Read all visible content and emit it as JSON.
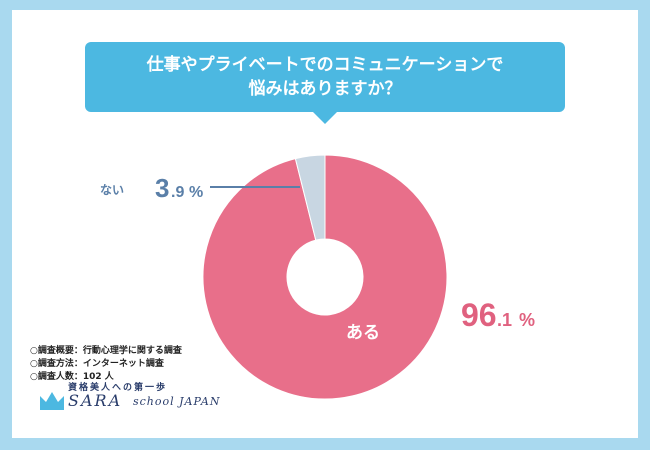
{
  "title": {
    "line1": "仕事やプライベートでのコミュニケーションで",
    "line2": "悩みはありますか？"
  },
  "colors": {
    "background": "#a9d9ef",
    "title_box": "#4cb8e1",
    "yes_slice": "#e86f8a",
    "no_slice": "#c8d6e2",
    "yes_label_number": "#e0617f",
    "no_label_text": "#5a7fa8"
  },
  "chart_data": {
    "type": "pie",
    "title": "仕事やプライベートでのコミュニケーションで悩みはありますか？",
    "series": [
      {
        "values": [
          96.1,
          3.9
        ]
      }
    ],
    "categories": [
      "ある",
      "ない"
    ],
    "labels": [
      {
        "category": "ある",
        "value_int": "96",
        "value_dec": ".1",
        "unit": "%"
      },
      {
        "category": "ない",
        "value_int": "3",
        "value_dec": ".9",
        "unit": "%"
      }
    ],
    "donut": true
  },
  "survey": {
    "line1": "○調査概要：行動心理学に関する調査",
    "line2": "○調査方法：インターネット調査",
    "line3": "○調査人数：102 人"
  },
  "logo": {
    "tagline": "資格美人への第一歩",
    "brand": "SARA",
    "sub": "school JAPAN"
  }
}
